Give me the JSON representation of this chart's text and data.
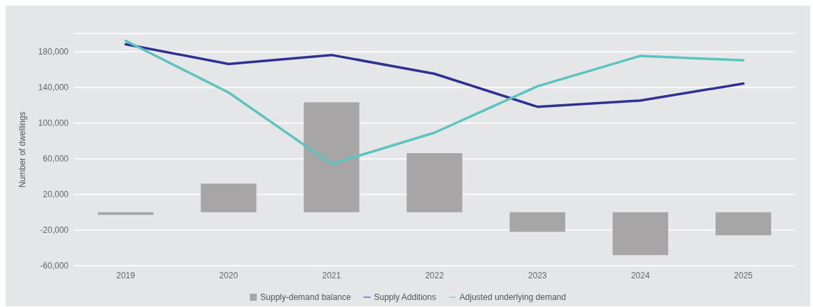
{
  "chart_data": {
    "type": "bar",
    "ylabel": "Number of dwellings",
    "categories": [
      "2019",
      "2020",
      "2021",
      "2022",
      "2023",
      "2024",
      "2025"
    ],
    "series": [
      {
        "name": "Supply-demand balance",
        "color": "#a7a5a6",
        "values": [
          -3000,
          32000,
          123000,
          66000,
          -22000,
          -48000,
          -26000
        ]
      },
      {
        "name": "Supply Additions",
        "type": "line",
        "color": "#2e3192",
        "values": [
          188000,
          166000,
          176000,
          155000,
          118000,
          125000,
          144000
        ]
      },
      {
        "name": "Adjusted underlying demand",
        "type": "line",
        "color": "#5bc4bf",
        "values": [
          192000,
          134000,
          54000,
          89000,
          141000,
          175000,
          170000
        ]
      }
    ],
    "ylim": [
      -60000,
      200000
    ],
    "yticks": [
      {
        "value": -60000,
        "label": "-60,000"
      },
      {
        "value": -20000,
        "label": "-20,000"
      },
      {
        "value": 20000,
        "label": "20,000"
      },
      {
        "value": 60000,
        "label": "60,000"
      },
      {
        "value": 100000,
        "label": "100,000"
      },
      {
        "value": 140000,
        "label": "140,000"
      },
      {
        "value": 180000,
        "label": "180,000"
      },
      {
        "value": 200000,
        "label": null
      }
    ],
    "grid": "y",
    "legend": "bottom",
    "marker": "none"
  }
}
